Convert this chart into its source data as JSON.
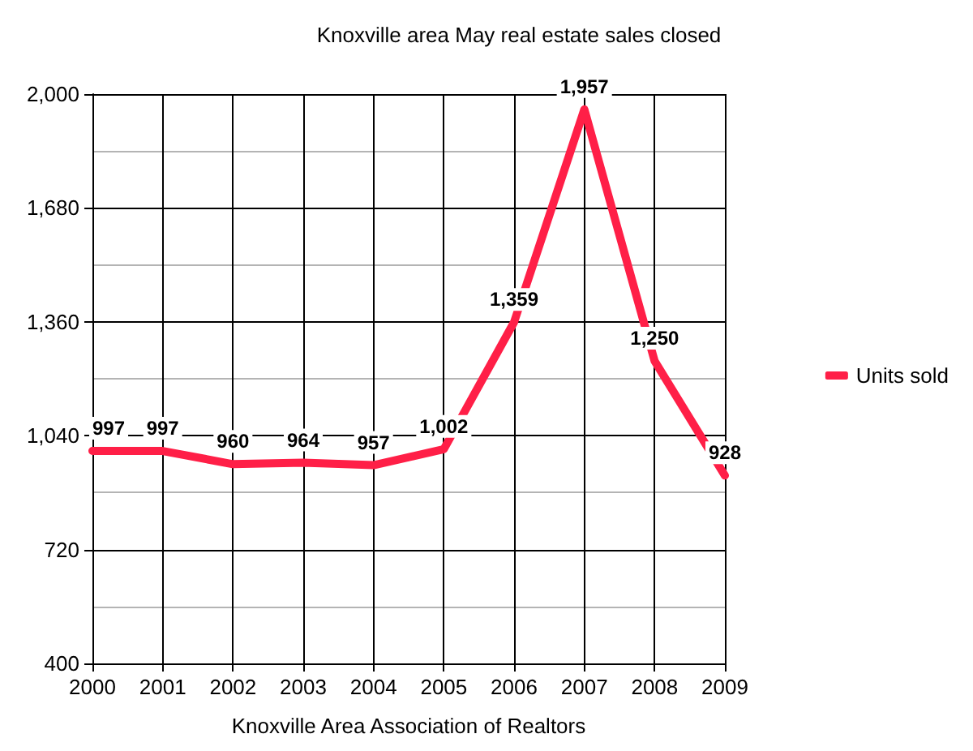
{
  "chart_data": {
    "type": "line",
    "title": "Knoxville area May real estate sales closed",
    "xlabel": "Knoxville Area Association of Realtors",
    "x": [
      2000,
      2001,
      2002,
      2003,
      2004,
      2005,
      2006,
      2007,
      2008,
      2009
    ],
    "series": [
      {
        "name": "Units sold",
        "color": "#ff1f47",
        "values": [
          997,
          997,
          960,
          964,
          957,
          1002,
          1359,
          1957,
          1250,
          928
        ],
        "value_labels": [
          "997",
          "997",
          "960",
          "964",
          "957",
          "1,002",
          "1,359",
          "1,957",
          "1,250",
          "928"
        ]
      }
    ],
    "xlim": [
      2000,
      2009
    ],
    "xticks": [
      2000,
      2001,
      2002,
      2003,
      2004,
      2005,
      2006,
      2007,
      2008,
      2009
    ],
    "ylim": [
      400,
      2000
    ],
    "yticks": [
      400,
      {
        "value": 560,
        "label": null
      },
      720,
      {
        "value": 880,
        "label": null
      },
      {
        "value": 1040,
        "label": "1,040"
      },
      {
        "value": 1200,
        "label": null
      },
      {
        "value": 1360,
        "label": "1,360"
      },
      {
        "value": 1520,
        "label": null
      },
      {
        "value": 1680,
        "label": "1,680"
      },
      {
        "value": 1840,
        "label": null
      },
      {
        "value": 2000,
        "label": "2,000"
      }
    ],
    "grid": true,
    "legend": "right",
    "marker": "none",
    "line_style": "solid"
  }
}
